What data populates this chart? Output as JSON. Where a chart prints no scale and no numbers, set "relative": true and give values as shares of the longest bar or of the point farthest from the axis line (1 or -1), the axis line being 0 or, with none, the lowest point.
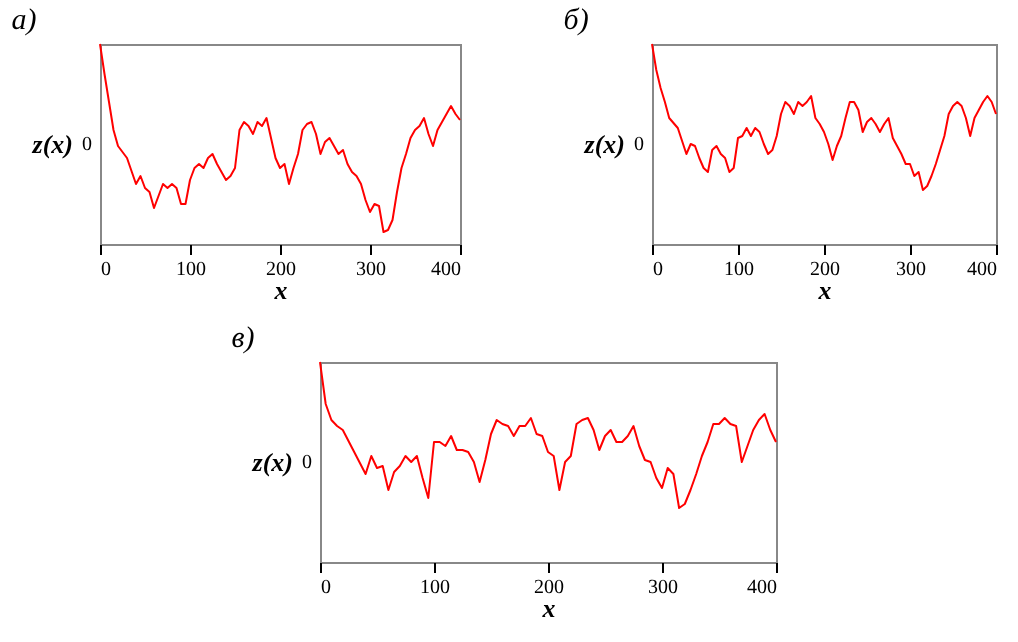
{
  "chart_data": [
    {
      "type": "line",
      "title": "a)",
      "xlabel": "x",
      "ylabel": "z(x)",
      "relative": true,
      "xlim": [
        0,
        400
      ],
      "xticks": [
        0,
        100,
        200,
        300,
        400
      ],
      "grid": false,
      "annotations": [
        "0"
      ],
      "x": [
        0,
        5,
        10,
        15,
        20,
        30,
        40,
        45,
        50,
        55,
        60,
        65,
        70,
        75,
        80,
        85,
        90,
        95,
        100,
        105,
        110,
        115,
        120,
        125,
        130,
        135,
        140,
        145,
        150,
        155,
        160,
        165,
        170,
        175,
        180,
        185,
        190,
        195,
        200,
        205,
        210,
        215,
        220,
        225,
        230,
        235,
        240,
        245,
        250,
        255,
        260,
        265,
        270,
        275,
        280,
        285,
        290,
        295,
        300,
        305,
        310,
        315,
        320,
        325,
        330,
        335,
        340,
        345,
        350,
        355,
        360,
        365,
        370,
        375,
        380,
        385,
        390,
        395,
        400
      ],
      "series": [
        {
          "color": "#ff0000",
          "values": [
            1.0,
            0.85,
            0.71,
            0.57,
            0.49,
            0.43,
            0.3,
            0.34,
            0.28,
            0.26,
            0.18,
            0.24,
            0.3,
            0.28,
            0.3,
            0.28,
            0.2,
            0.2,
            0.32,
            0.38,
            0.4,
            0.38,
            0.43,
            0.45,
            0.4,
            0.36,
            0.32,
            0.34,
            0.38,
            0.57,
            0.61,
            0.59,
            0.55,
            0.61,
            0.59,
            0.63,
            0.53,
            0.43,
            0.38,
            0.4,
            0.3,
            0.38,
            0.45,
            0.57,
            0.6,
            0.61,
            0.55,
            0.45,
            0.51,
            0.53,
            0.49,
            0.45,
            0.47,
            0.4,
            0.36,
            0.34,
            0.3,
            0.22,
            0.16,
            0.2,
            0.19,
            0.06,
            0.07,
            0.12,
            0.26,
            0.38,
            0.45,
            0.53,
            0.57,
            0.59,
            0.63,
            0.55,
            0.49,
            0.57,
            0.61,
            0.65,
            0.69,
            0.65,
            0.62
          ]
        }
      ]
    },
    {
      "type": "line",
      "title": "б)",
      "xlabel": "x",
      "ylabel": "z(x)",
      "relative": true,
      "xlim": [
        0,
        400
      ],
      "xticks": [
        0,
        100,
        200,
        300,
        400
      ],
      "grid": false,
      "annotations": [
        "0"
      ],
      "x": [
        0,
        5,
        10,
        15,
        20,
        30,
        40,
        45,
        50,
        55,
        60,
        65,
        70,
        75,
        80,
        85,
        90,
        95,
        100,
        105,
        110,
        115,
        120,
        125,
        130,
        135,
        140,
        145,
        150,
        155,
        160,
        165,
        170,
        175,
        180,
        185,
        190,
        195,
        200,
        205,
        210,
        215,
        220,
        225,
        230,
        235,
        240,
        245,
        250,
        255,
        260,
        265,
        270,
        275,
        280,
        285,
        290,
        295,
        300,
        305,
        310,
        315,
        320,
        325,
        330,
        335,
        340,
        345,
        350,
        355,
        360,
        365,
        370,
        375,
        380,
        385,
        390,
        395,
        400
      ],
      "series": [
        {
          "color": "#ff0000",
          "values": [
            1.0,
            0.87,
            0.78,
            0.71,
            0.63,
            0.58,
            0.45,
            0.5,
            0.49,
            0.43,
            0.38,
            0.36,
            0.47,
            0.49,
            0.45,
            0.43,
            0.36,
            0.38,
            0.53,
            0.54,
            0.58,
            0.54,
            0.58,
            0.56,
            0.5,
            0.45,
            0.47,
            0.54,
            0.65,
            0.71,
            0.69,
            0.65,
            0.71,
            0.69,
            0.71,
            0.74,
            0.63,
            0.6,
            0.56,
            0.5,
            0.42,
            0.49,
            0.54,
            0.63,
            0.71,
            0.71,
            0.67,
            0.56,
            0.61,
            0.63,
            0.6,
            0.56,
            0.6,
            0.63,
            0.53,
            0.49,
            0.45,
            0.4,
            0.4,
            0.34,
            0.36,
            0.27,
            0.29,
            0.34,
            0.4,
            0.47,
            0.54,
            0.65,
            0.69,
            0.71,
            0.69,
            0.63,
            0.54,
            0.63,
            0.67,
            0.71,
            0.74,
            0.71,
            0.65
          ]
        }
      ]
    },
    {
      "type": "line",
      "title": "в)",
      "xlabel": "x",
      "ylabel": "z(x)",
      "relative": true,
      "xlim": [
        0,
        400
      ],
      "xticks": [
        0,
        100,
        200,
        300,
        400
      ],
      "grid": false,
      "annotations": [
        "0"
      ],
      "x": [
        0,
        5,
        10,
        15,
        20,
        30,
        40,
        45,
        50,
        55,
        60,
        65,
        70,
        75,
        80,
        85,
        90,
        95,
        100,
        105,
        110,
        115,
        120,
        125,
        130,
        135,
        140,
        145,
        150,
        155,
        160,
        165,
        170,
        175,
        180,
        185,
        190,
        195,
        200,
        205,
        210,
        215,
        220,
        225,
        230,
        235,
        240,
        245,
        250,
        255,
        260,
        265,
        270,
        275,
        280,
        285,
        290,
        295,
        300,
        305,
        310,
        315,
        320,
        325,
        330,
        335,
        340,
        345,
        350,
        355,
        360,
        365,
        370,
        375,
        380,
        385,
        390,
        395,
        400
      ],
      "series": [
        {
          "color": "#ff0000",
          "values": [
            1.0,
            0.79,
            0.71,
            0.68,
            0.66,
            0.55,
            0.44,
            0.53,
            0.47,
            0.48,
            0.36,
            0.45,
            0.48,
            0.53,
            0.5,
            0.53,
            0.42,
            0.32,
            0.6,
            0.6,
            0.58,
            0.63,
            0.56,
            0.56,
            0.55,
            0.5,
            0.4,
            0.51,
            0.64,
            0.71,
            0.69,
            0.68,
            0.63,
            0.68,
            0.68,
            0.72,
            0.64,
            0.63,
            0.55,
            0.53,
            0.36,
            0.5,
            0.53,
            0.69,
            0.71,
            0.72,
            0.66,
            0.56,
            0.63,
            0.66,
            0.6,
            0.6,
            0.63,
            0.68,
            0.58,
            0.51,
            0.5,
            0.42,
            0.37,
            0.47,
            0.44,
            0.27,
            0.29,
            0.36,
            0.44,
            0.53,
            0.6,
            0.69,
            0.69,
            0.72,
            0.69,
            0.68,
            0.5,
            0.58,
            0.66,
            0.71,
            0.74,
            0.66,
            0.6
          ]
        }
      ]
    }
  ]
}
